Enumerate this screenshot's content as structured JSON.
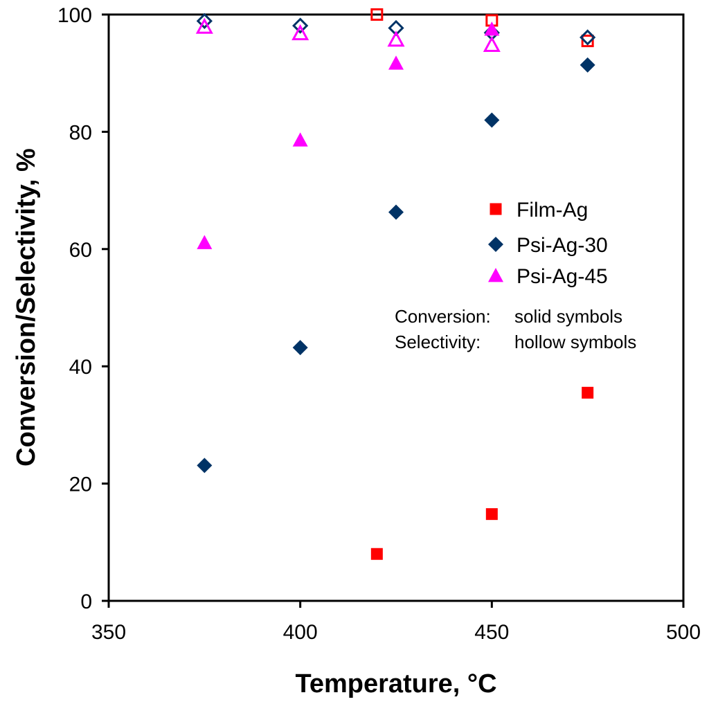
{
  "chart_data": {
    "type": "scatter",
    "xlabel": "Temperature, °C",
    "ylabel": "Conversion/Selectivity, %",
    "xlim": [
      350,
      500
    ],
    "ylim": [
      0,
      100
    ],
    "x_ticks": [
      350,
      400,
      450,
      500
    ],
    "y_ticks": [
      0,
      20,
      40,
      60,
      80,
      100
    ],
    "grid": false,
    "legend_position": "right",
    "series": [
      {
        "name": "Film-Ag",
        "marker": "square",
        "color": "#ff0000",
        "conversion": [
          {
            "x": 420,
            "y": 8
          },
          {
            "x": 450,
            "y": 14.8
          },
          {
            "x": 475,
            "y": 35.5
          }
        ],
        "selectivity": [
          {
            "x": 420,
            "y": 100
          },
          {
            "x": 450,
            "y": 99
          },
          {
            "x": 475,
            "y": 95.5
          }
        ]
      },
      {
        "name": "Psi-Ag-30",
        "marker": "diamond",
        "color": "#003366",
        "conversion": [
          {
            "x": 375,
            "y": 23.1
          },
          {
            "x": 400,
            "y": 43.2
          },
          {
            "x": 425,
            "y": 66.3
          },
          {
            "x": 450,
            "y": 82
          },
          {
            "x": 475,
            "y": 91.4
          }
        ],
        "selectivity": [
          {
            "x": 375,
            "y": 98.9
          },
          {
            "x": 400,
            "y": 98.1
          },
          {
            "x": 425,
            "y": 97.7
          },
          {
            "x": 450,
            "y": 96.9
          },
          {
            "x": 475,
            "y": 96.1
          }
        ]
      },
      {
        "name": "Psi-Ag-45",
        "marker": "triangle",
        "color": "#ff00ff",
        "conversion": [
          {
            "x": 375,
            "y": 61.1
          },
          {
            "x": 400,
            "y": 78.6
          },
          {
            "x": 425,
            "y": 91.7
          },
          {
            "x": 450,
            "y": 97.5
          }
        ],
        "selectivity": [
          {
            "x": 375,
            "y": 97.9
          },
          {
            "x": 400,
            "y": 96.8
          },
          {
            "x": 425,
            "y": 95.7
          },
          {
            "x": 450,
            "y": 94.8
          }
        ]
      }
    ],
    "annotations": [
      {
        "label": "Conversion:",
        "text": "solid symbols"
      },
      {
        "label": "Selectivity:",
        "text": "hollow symbols"
      }
    ]
  }
}
